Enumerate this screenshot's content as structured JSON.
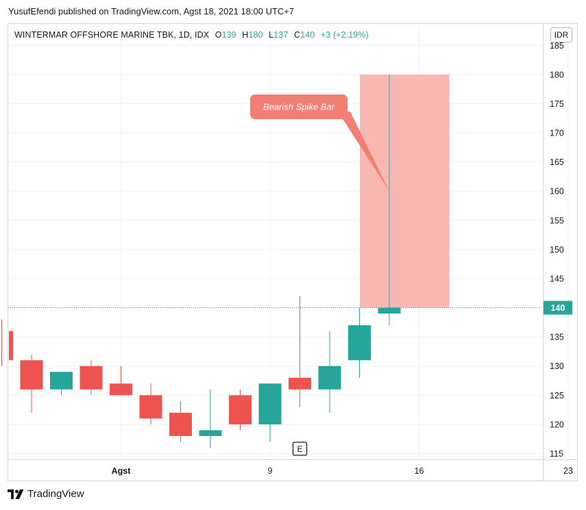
{
  "header": {
    "publisher_line": "YusufEfendi published on TradingView.com, Agst 18, 2021 18:00 UTC+7"
  },
  "legend": {
    "symbol": "WINTERMAR OFFSHORE MARINE TBK, 1D, IDX",
    "open_label": "O",
    "open_value": "139",
    "high_label": "H",
    "high_value": "180",
    "low_label": "L",
    "low_value": "137",
    "close_label": "C",
    "close_value": "140",
    "change": "+3 (+2.19%)"
  },
  "currency": "IDR",
  "footer": {
    "brand": "TradingView",
    "logo_icon": "tradingview-logo-icon"
  },
  "colors": {
    "up": "#26a69a",
    "down": "#ef5350",
    "highlight": "#f8b4ad",
    "callout": "#f37f74",
    "grid": "#f0f3fa",
    "axis_text": "#131722"
  },
  "chart_data": {
    "type": "candlestick",
    "y_ticks": [
      115,
      120,
      125,
      130,
      135,
      140,
      145,
      150,
      155,
      160,
      165,
      170,
      175,
      180,
      185
    ],
    "ylim": [
      114,
      185.5
    ],
    "x_ticks": [
      {
        "label": "Agst",
        "date": "2021-08-02"
      },
      {
        "label": "9",
        "date": "2021-08-09"
      },
      {
        "label": "16",
        "date": "2021-08-16"
      },
      {
        "label": "23",
        "date": "2021-08-23"
      }
    ],
    "candles": [
      {
        "date": "2021-07-26",
        "open": 133,
        "high": 135,
        "low": 133,
        "close": 135
      },
      {
        "date": "2021-07-27",
        "open": 136,
        "high": 138,
        "low": 130,
        "close": 131
      },
      {
        "date": "2021-07-28",
        "open": 131,
        "high": 132,
        "low": 122,
        "close": 126
      },
      {
        "date": "2021-07-29",
        "open": 126,
        "high": 129,
        "low": 125,
        "close": 129
      },
      {
        "date": "2021-07-30",
        "open": 130,
        "high": 131,
        "low": 125,
        "close": 126
      },
      {
        "date": "2021-08-02",
        "open": 127,
        "high": 130,
        "low": 125,
        "close": 125
      },
      {
        "date": "2021-08-03",
        "open": 125,
        "high": 127,
        "low": 120,
        "close": 121
      },
      {
        "date": "2021-08-04",
        "open": 122,
        "high": 124,
        "low": 117,
        "close": 118
      },
      {
        "date": "2021-08-05",
        "open": 118,
        "high": 126,
        "low": 116,
        "close": 119
      },
      {
        "date": "2021-08-06",
        "open": 125,
        "high": 126,
        "low": 119,
        "close": 120
      },
      {
        "date": "2021-08-09",
        "open": 120,
        "high": 127,
        "low": 117,
        "close": 127
      },
      {
        "date": "2021-08-10",
        "open": 128,
        "high": 142,
        "low": 123,
        "close": 126
      },
      {
        "date": "2021-08-11",
        "open": 126,
        "high": 136,
        "low": 122,
        "close": 130
      },
      {
        "date": "2021-08-12",
        "open": 131,
        "high": 140,
        "low": 128,
        "close": 137
      },
      {
        "date": "2021-08-13",
        "open": 139,
        "high": 180,
        "low": 137,
        "close": 140
      }
    ],
    "last_price": 140,
    "highlight_box": {
      "from_date": "2021-08-13",
      "to_date": "2021-08-16",
      "low": 140,
      "high": 180
    },
    "callout": {
      "text": "Bearish Spike Bar",
      "date": "2021-08-13",
      "price": 160
    },
    "earnings_marker": {
      "text": "E",
      "date": "2021-08-10"
    }
  }
}
